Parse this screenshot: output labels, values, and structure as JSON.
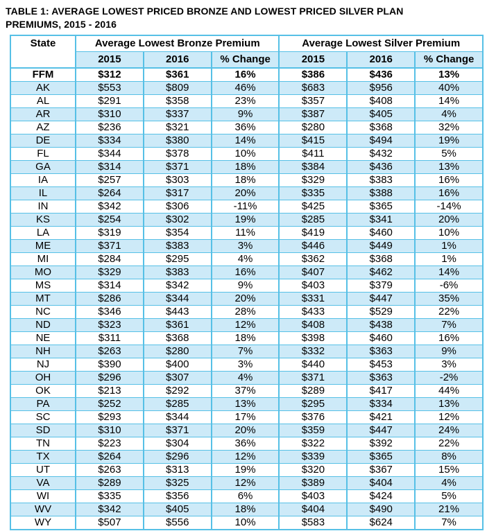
{
  "title": {
    "line1": "TABLE 1: AVERAGE LOWEST PRICED BRONZE AND LOWEST PRICED SILVER PLAN",
    "line2": "PREMIUMS, 2015 - 2016",
    "full": "TABLE 1: AVERAGE LOWEST PRICED BRONZE AND LOWEST PRICED SILVER PLAN PREMIUMS, 2015 - 2016"
  },
  "colors": {
    "grid": "#56c0e6",
    "row_stripe": "#cdeaf8",
    "text": "#000000",
    "background": "#ffffff"
  },
  "table": {
    "col_state": "State",
    "group_headers": [
      "Average Lowest Bronze Premium",
      "Average Lowest Silver Premium"
    ],
    "sub_headers": [
      "2015",
      "2016",
      "% Change"
    ],
    "rows": [
      {
        "state": "FFM",
        "bronze": [
          "$312",
          "$361",
          "16%"
        ],
        "silver": [
          "$386",
          "$436",
          "13%"
        ],
        "bold": true
      },
      {
        "state": "AK",
        "bronze": [
          "$553",
          "$809",
          "46%"
        ],
        "silver": [
          "$683",
          "$956",
          "40%"
        ],
        "bold": false
      },
      {
        "state": "AL",
        "bronze": [
          "$291",
          "$358",
          "23%"
        ],
        "silver": [
          "$357",
          "$408",
          "14%"
        ],
        "bold": false
      },
      {
        "state": "AR",
        "bronze": [
          "$310",
          "$337",
          "9%"
        ],
        "silver": [
          "$387",
          "$405",
          "4%"
        ],
        "bold": false
      },
      {
        "state": "AZ",
        "bronze": [
          "$236",
          "$321",
          "36%"
        ],
        "silver": [
          "$280",
          "$368",
          "32%"
        ],
        "bold": false
      },
      {
        "state": "DE",
        "bronze": [
          "$334",
          "$380",
          "14%"
        ],
        "silver": [
          "$415",
          "$494",
          "19%"
        ],
        "bold": false
      },
      {
        "state": "FL",
        "bronze": [
          "$344",
          "$378",
          "10%"
        ],
        "silver": [
          "$411",
          "$432",
          "5%"
        ],
        "bold": false
      },
      {
        "state": "GA",
        "bronze": [
          "$314",
          "$371",
          "18%"
        ],
        "silver": [
          "$384",
          "$436",
          "13%"
        ],
        "bold": false
      },
      {
        "state": "IA",
        "bronze": [
          "$257",
          "$303",
          "18%"
        ],
        "silver": [
          "$329",
          "$383",
          "16%"
        ],
        "bold": false
      },
      {
        "state": "IL",
        "bronze": [
          "$264",
          "$317",
          "20%"
        ],
        "silver": [
          "$335",
          "$388",
          "16%"
        ],
        "bold": false
      },
      {
        "state": "IN",
        "bronze": [
          "$342",
          "$306",
          "-11%"
        ],
        "silver": [
          "$425",
          "$365",
          "-14%"
        ],
        "bold": false
      },
      {
        "state": "KS",
        "bronze": [
          "$254",
          "$302",
          "19%"
        ],
        "silver": [
          "$285",
          "$341",
          "20%"
        ],
        "bold": false
      },
      {
        "state": "LA",
        "bronze": [
          "$319",
          "$354",
          "11%"
        ],
        "silver": [
          "$419",
          "$460",
          "10%"
        ],
        "bold": false
      },
      {
        "state": "ME",
        "bronze": [
          "$371",
          "$383",
          "3%"
        ],
        "silver": [
          "$446",
          "$449",
          "1%"
        ],
        "bold": false
      },
      {
        "state": "MI",
        "bronze": [
          "$284",
          "$295",
          "4%"
        ],
        "silver": [
          "$362",
          "$368",
          "1%"
        ],
        "bold": false
      },
      {
        "state": "MO",
        "bronze": [
          "$329",
          "$383",
          "16%"
        ],
        "silver": [
          "$407",
          "$462",
          "14%"
        ],
        "bold": false
      },
      {
        "state": "MS",
        "bronze": [
          "$314",
          "$342",
          "9%"
        ],
        "silver": [
          "$403",
          "$379",
          "-6%"
        ],
        "bold": false
      },
      {
        "state": "MT",
        "bronze": [
          "$286",
          "$344",
          "20%"
        ],
        "silver": [
          "$331",
          "$447",
          "35%"
        ],
        "bold": false
      },
      {
        "state": "NC",
        "bronze": [
          "$346",
          "$443",
          "28%"
        ],
        "silver": [
          "$433",
          "$529",
          "22%"
        ],
        "bold": false
      },
      {
        "state": "ND",
        "bronze": [
          "$323",
          "$361",
          "12%"
        ],
        "silver": [
          "$408",
          "$438",
          "7%"
        ],
        "bold": false
      },
      {
        "state": "NE",
        "bronze": [
          "$311",
          "$368",
          "18%"
        ],
        "silver": [
          "$398",
          "$460",
          "16%"
        ],
        "bold": false
      },
      {
        "state": "NH",
        "bronze": [
          "$263",
          "$280",
          "7%"
        ],
        "silver": [
          "$332",
          "$363",
          "9%"
        ],
        "bold": false
      },
      {
        "state": "NJ",
        "bronze": [
          "$390",
          "$400",
          "3%"
        ],
        "silver": [
          "$440",
          "$453",
          "3%"
        ],
        "bold": false
      },
      {
        "state": "OH",
        "bronze": [
          "$296",
          "$307",
          "4%"
        ],
        "silver": [
          "$371",
          "$363",
          "-2%"
        ],
        "bold": false
      },
      {
        "state": "OK",
        "bronze": [
          "$213",
          "$292",
          "37%"
        ],
        "silver": [
          "$289",
          "$417",
          "44%"
        ],
        "bold": false
      },
      {
        "state": "PA",
        "bronze": [
          "$252",
          "$285",
          "13%"
        ],
        "silver": [
          "$295",
          "$334",
          "13%"
        ],
        "bold": false
      },
      {
        "state": "SC",
        "bronze": [
          "$293",
          "$344",
          "17%"
        ],
        "silver": [
          "$376",
          "$421",
          "12%"
        ],
        "bold": false
      },
      {
        "state": "SD",
        "bronze": [
          "$310",
          "$371",
          "20%"
        ],
        "silver": [
          "$359",
          "$447",
          "24%"
        ],
        "bold": false
      },
      {
        "state": "TN",
        "bronze": [
          "$223",
          "$304",
          "36%"
        ],
        "silver": [
          "$322",
          "$392",
          "22%"
        ],
        "bold": false
      },
      {
        "state": "TX",
        "bronze": [
          "$264",
          "$296",
          "12%"
        ],
        "silver": [
          "$339",
          "$365",
          "8%"
        ],
        "bold": false
      },
      {
        "state": "UT",
        "bronze": [
          "$263",
          "$313",
          "19%"
        ],
        "silver": [
          "$320",
          "$367",
          "15%"
        ],
        "bold": false
      },
      {
        "state": "VA",
        "bronze": [
          "$289",
          "$325",
          "12%"
        ],
        "silver": [
          "$389",
          "$404",
          "4%"
        ],
        "bold": false
      },
      {
        "state": "WI",
        "bronze": [
          "$335",
          "$356",
          "6%"
        ],
        "silver": [
          "$403",
          "$424",
          "5%"
        ],
        "bold": false
      },
      {
        "state": "WV",
        "bronze": [
          "$342",
          "$405",
          "18%"
        ],
        "silver": [
          "$404",
          "$490",
          "21%"
        ],
        "bold": false
      },
      {
        "state": "WY",
        "bronze": [
          "$507",
          "$556",
          "10%"
        ],
        "silver": [
          "$583",
          "$624",
          "7%"
        ],
        "bold": false
      }
    ]
  }
}
